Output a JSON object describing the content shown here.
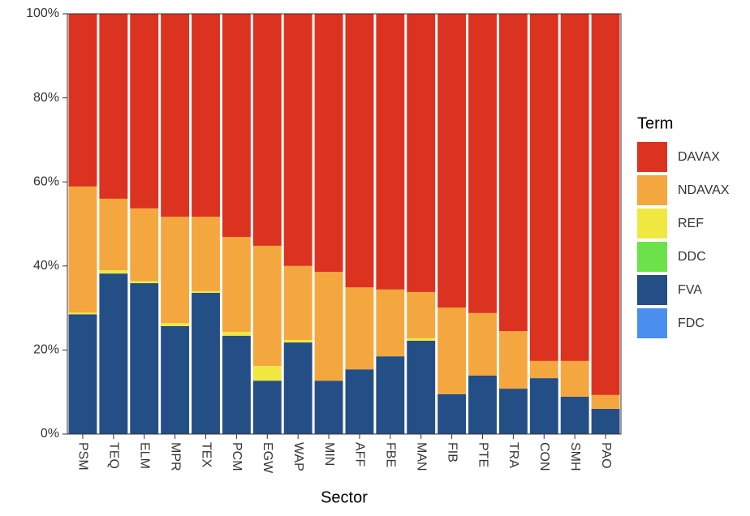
{
  "chart_data": {
    "type": "stacked_bar_percent",
    "x_label": "Sector",
    "legend_title": "Term",
    "categories": [
      "PSM",
      "TEQ",
      "ELM",
      "MPR",
      "TEX",
      "PCM",
      "EGW",
      "WAP",
      "MIN",
      "AFF",
      "FBE",
      "MAN",
      "FIB",
      "PTE",
      "TRA",
      "CON",
      "SMH",
      "PAO"
    ],
    "series": [
      {
        "name": "FDC",
        "color": "#4a8ff0",
        "values": [
          0,
          0,
          0,
          0,
          0,
          0,
          0,
          0,
          0,
          0,
          0,
          0,
          0,
          0,
          0,
          0,
          0,
          0
        ]
      },
      {
        "name": "FVA",
        "color": "#244e86",
        "values": [
          28.5,
          38.2,
          35.9,
          25.7,
          33.6,
          23.4,
          12.7,
          21.8,
          12.7,
          15.4,
          18.5,
          22.2,
          9.5,
          13.9,
          10.8,
          13.3,
          8.9,
          6.0
        ]
      },
      {
        "name": "DDC",
        "color": "#6be24a",
        "values": [
          0,
          0,
          0,
          0,
          0,
          0,
          0,
          0,
          0,
          0,
          0,
          0,
          0,
          0,
          0,
          0,
          0,
          0
        ]
      },
      {
        "name": "REF",
        "color": "#f0e840",
        "values": [
          0.4,
          0.8,
          0.5,
          0.7,
          0.4,
          0.9,
          3.5,
          0.6,
          0,
          0,
          0,
          0.6,
          0,
          0,
          0,
          0,
          0,
          0
        ]
      },
      {
        "name": "NDAVAX",
        "color": "#f4a73e",
        "values": [
          30,
          17,
          17.3,
          25.3,
          17.7,
          22.6,
          28.6,
          17.6,
          25.9,
          19.5,
          15.9,
          11.0,
          20.6,
          14.9,
          13.7,
          4.1,
          8.5,
          3.3
        ]
      },
      {
        "name": "DAVAX",
        "color": "#dc3220",
        "values": [
          41.1,
          44.0,
          46.3,
          48.3,
          48.3,
          53.1,
          55.2,
          60.0,
          61.4,
          65.1,
          65.6,
          66.2,
          69.9,
          71.2,
          75.5,
          82.6,
          82.6,
          90.7
        ]
      }
    ],
    "legend_order": [
      "DAVAX",
      "NDAVAX",
      "REF",
      "DDC",
      "FVA",
      "FDC"
    ],
    "ylim": [
      0,
      100
    ],
    "yticks": [
      {
        "value": 0,
        "label": "0%"
      },
      {
        "value": 20,
        "label": "20%"
      },
      {
        "value": 40,
        "label": "40%"
      },
      {
        "value": 60,
        "label": "60%"
      },
      {
        "value": 80,
        "label": "80%"
      },
      {
        "value": 100,
        "label": "100%"
      }
    ],
    "legend_position": "right"
  }
}
